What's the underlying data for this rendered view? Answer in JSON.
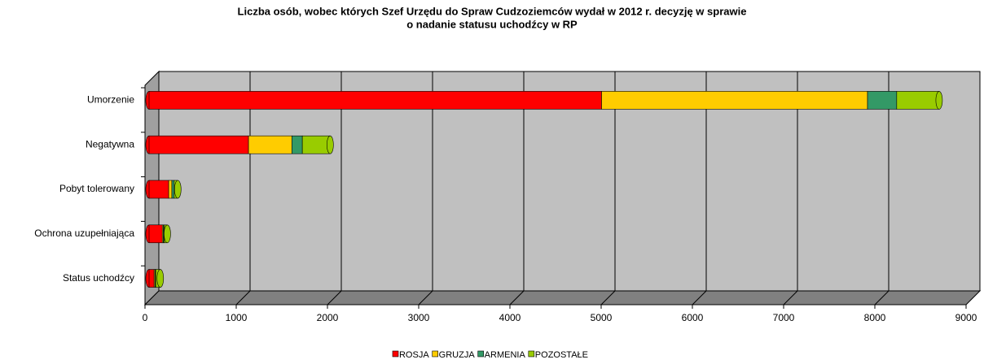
{
  "chart_data": {
    "type": "bar",
    "orientation": "horizontal",
    "stacked": true,
    "title": [
      "Liczba osób, wobec których  Szef Urzędu do Spraw Cudzoziemców wydał w 2012 r. decyzję w sprawie",
      "o nadanie statusu uchodźcy w RP"
    ],
    "categories": [
      "Umorzenie",
      "Negatywna",
      "Pobyt tolerowany",
      "Ochrona uzupełniająca",
      "Status uchodźcy"
    ],
    "series": [
      {
        "name": "ROSJA",
        "color": "#ff0000",
        "values": [
          4960,
          1090,
          215,
          145,
          55
        ]
      },
      {
        "name": "GRUZJA",
        "color": "#ffcc00",
        "values": [
          2915,
          475,
          35,
          10,
          10
        ]
      },
      {
        "name": "ARMENIA",
        "color": "#339966",
        "values": [
          320,
          115,
          25,
          10,
          8
        ]
      },
      {
        "name": "POZOSTAŁE",
        "color": "#99cc00",
        "values": [
          465,
          305,
          40,
          35,
          50
        ]
      }
    ],
    "xlim": [
      0,
      9000
    ],
    "xticks": [
      0,
      1000,
      2000,
      3000,
      4000,
      5000,
      6000,
      7000,
      8000,
      9000
    ],
    "grid": true,
    "legend": "bottom"
  }
}
